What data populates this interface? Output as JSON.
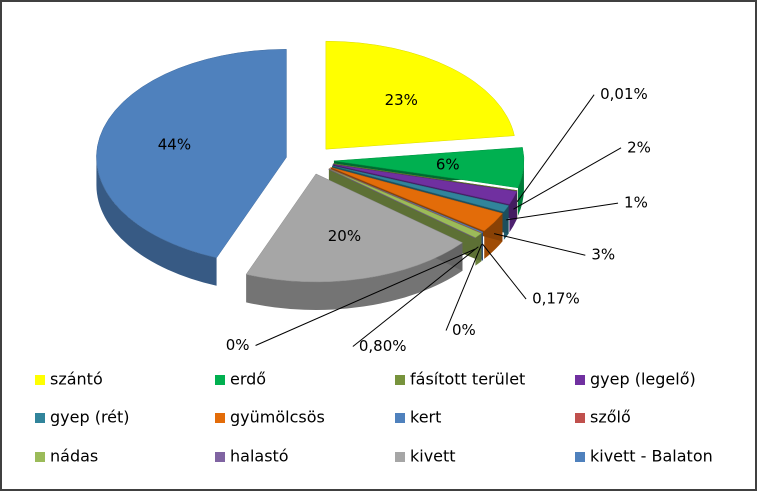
{
  "chart_data": {
    "type": "pie3d",
    "categories": [
      "szántó",
      "erdő",
      "fásított terület",
      "gyep (legelő)",
      "gyep (rét)",
      "gyümölcsös",
      "kert",
      "szőlő",
      "nádas",
      "halastó",
      "kivett",
      "kivett - Balaton"
    ],
    "values": [
      23,
      6,
      0.01,
      2,
      1,
      3,
      0.17,
      0,
      0.8,
      0,
      20,
      44
    ],
    "value_labels": [
      "23%",
      "6%",
      "0,01%",
      "2%",
      "1%",
      "3%",
      "0,17%",
      "0%",
      "0,80%",
      "0%",
      "20%",
      "44%"
    ],
    "colors": [
      "#ffff00",
      "#00b050",
      "#77933c",
      "#7030a0",
      "#31849b",
      "#e36c09",
      "#4f81bd",
      "#c0504d",
      "#9bbb59",
      "#8064a2",
      "#a6a6a6",
      "#4f81bd"
    ],
    "legend": "bottom"
  }
}
